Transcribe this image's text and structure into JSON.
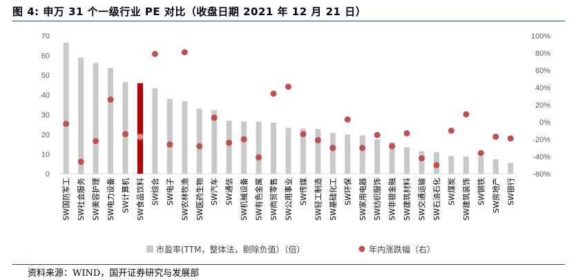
{
  "title": "图 4:  申万 31 个一级行业 PE 对比（收盘日期 2021 年 12 月 21 日）",
  "source": "资料来源：WIND，国开证券研究与发展部",
  "colors": {
    "bar": "#c9c9c9",
    "bar_highlight": "#c00000",
    "dot": "#c0504d",
    "rule": "#1f4e79"
  },
  "chart_data": {
    "type": "bar",
    "title": "",
    "xlabel": "",
    "ylabel": "",
    "ylim": [
      0,
      70
    ],
    "yticks": [
      "0",
      "10",
      "20",
      "30",
      "40",
      "50",
      "60",
      "70"
    ],
    "y2lim": [
      -60,
      100
    ],
    "y2ticks": [
      "-60%",
      "-40%",
      "-20%",
      "0%",
      "20%",
      "40%",
      "60%",
      "80%",
      "100%"
    ],
    "categories": [
      "SW国防军工",
      "SW社会服务",
      "SW美容护理",
      "SW电力设备",
      "SW计算机",
      "SW食品饮料",
      "SW综合",
      "SW电子",
      "SW农林牧渔",
      "SW医药生物",
      "SW汽车",
      "SW通信",
      "SW机械设备",
      "SW有色金属",
      "SW商贸零售",
      "SW公用事业",
      "SW传媒",
      "SW轻工制造",
      "SW基础化工",
      "SW环保",
      "SW家用电器",
      "SW纺织服饰",
      "SW非银金融",
      "SW建筑材料",
      "SW交通运输",
      "SW石油石化",
      "SW煤炭",
      "SW建筑装饰",
      "SW钢铁",
      "SW房地产",
      "SW银行"
    ],
    "highlight": "SW食品饮料",
    "series": [
      {
        "name": "市盈率(TTM，整体法，剔除负值）（倍）",
        "axis": "left",
        "kind": "bar",
        "values": [
          66.5,
          59,
          56.2,
          53.8,
          46.5,
          46,
          43.5,
          38,
          36.8,
          33,
          32.3,
          27,
          26.5,
          26.5,
          26,
          23.3,
          23,
          22.8,
          20.8,
          20,
          19.5,
          17.5,
          16,
          13.5,
          11.5,
          11,
          9,
          8.8,
          8.8,
          7.3,
          5.5
        ]
      },
      {
        "name": "年内涨跌幅（右）",
        "axis": "right",
        "kind": "dot",
        "values": [
          -2,
          -46,
          -22,
          26,
          -14,
          -17,
          79,
          -26,
          81,
          -28,
          5,
          -24,
          -20,
          -41,
          33,
          41,
          -14,
          -21,
          -30,
          3,
          -30,
          -15,
          -28,
          -13,
          -42,
          -50,
          -10,
          9,
          -36,
          -17,
          -19
        ]
      }
    ],
    "legend": "bottom"
  }
}
